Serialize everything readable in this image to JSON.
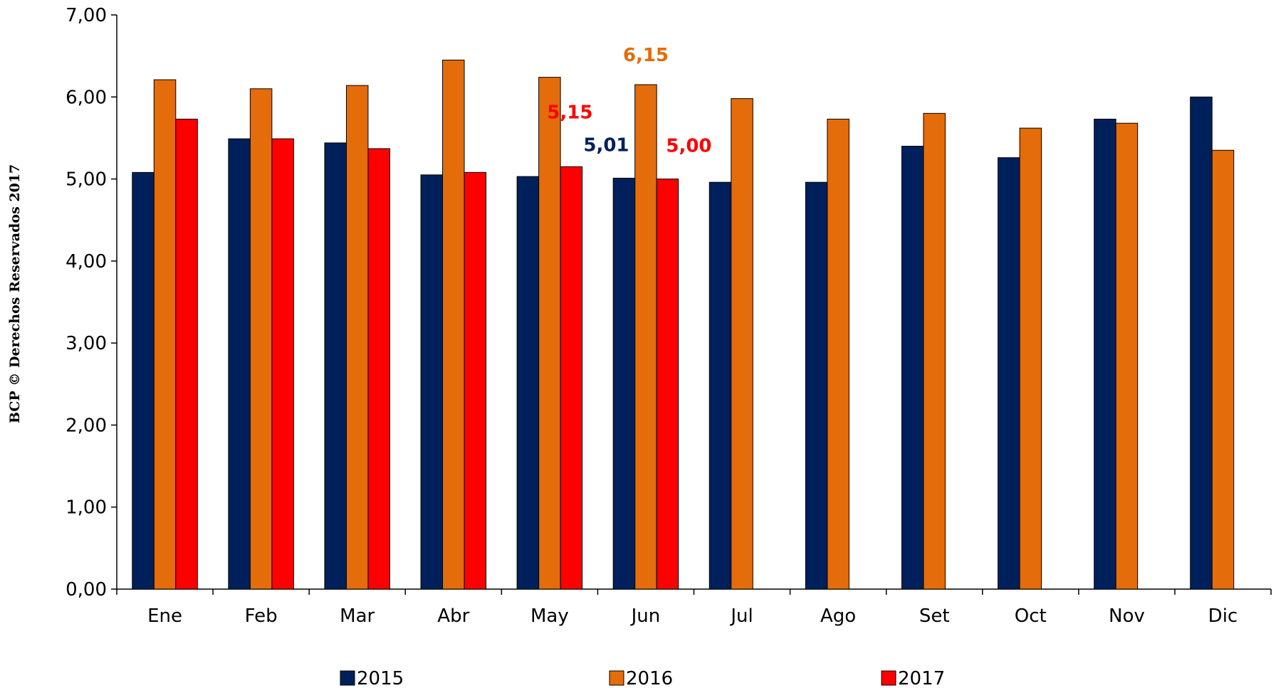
{
  "side_text": "BCP © Derechos Reservados 2017",
  "colors": {
    "2015": "#00205b",
    "2016": "#e46c0a",
    "2017": "#ff0000"
  },
  "chart_data": {
    "type": "bar",
    "categories": [
      "Ene",
      "Feb",
      "Mar",
      "Abr",
      "May",
      "Jun",
      "Jul",
      "Ago",
      "Set",
      "Oct",
      "Nov",
      "Dic"
    ],
    "series": [
      {
        "name": "2015",
        "values": [
          5.08,
          5.49,
          5.44,
          5.05,
          5.03,
          5.01,
          4.96,
          4.96,
          5.4,
          5.26,
          5.73,
          6.0
        ]
      },
      {
        "name": "2016",
        "values": [
          6.21,
          6.1,
          6.14,
          6.45,
          6.24,
          6.15,
          5.98,
          5.73,
          5.8,
          5.62,
          5.68,
          5.35
        ]
      },
      {
        "name": "2017",
        "values": [
          5.73,
          5.49,
          5.37,
          5.08,
          5.15,
          5.0,
          null,
          null,
          null,
          null,
          null,
          null
        ]
      }
    ],
    "ylim": [
      0,
      7
    ],
    "yticks": [
      "0,00",
      "1,00",
      "2,00",
      "3,00",
      "4,00",
      "5,00",
      "6,00",
      "7,00"
    ],
    "annotations": [
      {
        "text": "6,15",
        "series": "2016",
        "category": "Jun",
        "value": 6.15
      },
      {
        "text": "5,15",
        "series": "2017",
        "category": "May",
        "value": 5.15
      },
      {
        "text": "5,01",
        "series": "2015",
        "category": "Jun",
        "value": 5.01
      },
      {
        "text": "5,00",
        "series": "2017",
        "category": "Jun",
        "value": 5.0
      }
    ],
    "legend": {
      "position": "bottom",
      "entries": [
        "2015",
        "2016",
        "2017"
      ]
    },
    "grid": false
  }
}
